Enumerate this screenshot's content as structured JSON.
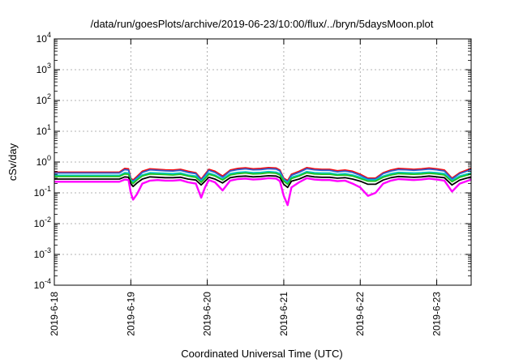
{
  "chart_data": {
    "type": "line",
    "title": "/data/run/goesPlots/archive/2019-06-23/10:00/flux/../bryn/5daysMoon.plot",
    "xlabel": "Coordinated Universal Time (UTC)",
    "ylabel": "cSv/day",
    "yscale": "log",
    "ylim": [
      0.0001,
      10000
    ],
    "xlim": [
      0,
      5.45
    ],
    "grid": true,
    "x_ticks": [
      {
        "label": "2019-6-18",
        "value": 0
      },
      {
        "label": "2019-6-19",
        "value": 1
      },
      {
        "label": "2019-6-20",
        "value": 2
      },
      {
        "label": "2019-6-21",
        "value": 3
      },
      {
        "label": "2019-6-22",
        "value": 4
      },
      {
        "label": "2019-6-23",
        "value": 5
      }
    ],
    "y_ticks": [
      {
        "base": "10",
        "exp": "-4",
        "value": -4
      },
      {
        "base": "10",
        "exp": "-3",
        "value": -3
      },
      {
        "base": "10",
        "exp": "-2",
        "value": -2
      },
      {
        "base": "10",
        "exp": "-1",
        "value": -1
      },
      {
        "base": "10",
        "exp": "0",
        "value": 0
      },
      {
        "base": "10",
        "exp": "1",
        "value": 1
      },
      {
        "base": "10",
        "exp": "2",
        "value": 2
      },
      {
        "base": "10",
        "exp": "3",
        "value": 3
      },
      {
        "base": "10",
        "exp": "4",
        "value": 4
      }
    ],
    "x": [
      0,
      0.3,
      0.6,
      0.85,
      0.92,
      0.97,
      1.0,
      1.03,
      1.08,
      1.15,
      1.25,
      1.35,
      1.45,
      1.55,
      1.65,
      1.75,
      1.85,
      1.92,
      1.97,
      2.02,
      2.1,
      2.2,
      2.3,
      2.4,
      2.5,
      2.6,
      2.7,
      2.8,
      2.9,
      2.95,
      3.0,
      3.05,
      3.1,
      3.2,
      3.3,
      3.4,
      3.5,
      3.6,
      3.7,
      3.8,
      3.9,
      4.0,
      4.1,
      4.2,
      4.3,
      4.4,
      4.5,
      4.6,
      4.7,
      4.8,
      4.9,
      5.0,
      5.1,
      5.2,
      5.3,
      5.45
    ],
    "series": [
      {
        "color": "#ff0000",
        "values": [
          0.47,
          0.47,
          0.47,
          0.47,
          0.62,
          0.6,
          0.3,
          0.26,
          0.34,
          0.5,
          0.6,
          0.58,
          0.56,
          0.55,
          0.58,
          0.5,
          0.45,
          0.28,
          0.4,
          0.58,
          0.5,
          0.35,
          0.55,
          0.62,
          0.65,
          0.6,
          0.62,
          0.66,
          0.64,
          0.55,
          0.3,
          0.25,
          0.4,
          0.5,
          0.66,
          0.6,
          0.58,
          0.58,
          0.52,
          0.55,
          0.5,
          0.4,
          0.3,
          0.3,
          0.45,
          0.55,
          0.62,
          0.6,
          0.58,
          0.6,
          0.64,
          0.6,
          0.55,
          0.3,
          0.45,
          0.62
        ]
      },
      {
        "color": "#2f5fd0",
        "values": [
          0.44,
          0.44,
          0.44,
          0.44,
          0.57,
          0.55,
          0.28,
          0.24,
          0.31,
          0.46,
          0.56,
          0.54,
          0.52,
          0.51,
          0.54,
          0.46,
          0.42,
          0.26,
          0.37,
          0.54,
          0.46,
          0.32,
          0.51,
          0.57,
          0.6,
          0.56,
          0.57,
          0.61,
          0.59,
          0.51,
          0.28,
          0.23,
          0.37,
          0.46,
          0.61,
          0.56,
          0.54,
          0.54,
          0.48,
          0.51,
          0.46,
          0.37,
          0.28,
          0.28,
          0.42,
          0.51,
          0.57,
          0.56,
          0.54,
          0.56,
          0.59,
          0.56,
          0.51,
          0.28,
          0.42,
          0.57
        ]
      },
      {
        "color": "#00c8c8",
        "values": [
          0.37,
          0.37,
          0.37,
          0.37,
          0.45,
          0.44,
          0.26,
          0.22,
          0.28,
          0.38,
          0.45,
          0.44,
          0.43,
          0.42,
          0.44,
          0.38,
          0.35,
          0.24,
          0.32,
          0.44,
          0.38,
          0.28,
          0.42,
          0.46,
          0.48,
          0.45,
          0.46,
          0.49,
          0.47,
          0.42,
          0.26,
          0.21,
          0.32,
          0.38,
          0.49,
          0.45,
          0.44,
          0.44,
          0.4,
          0.42,
          0.38,
          0.32,
          0.26,
          0.26,
          0.35,
          0.42,
          0.46,
          0.45,
          0.44,
          0.45,
          0.47,
          0.45,
          0.42,
          0.25,
          0.35,
          0.45
        ]
      },
      {
        "color": "#20c020",
        "values": [
          0.34,
          0.34,
          0.34,
          0.34,
          0.41,
          0.4,
          0.24,
          0.2,
          0.26,
          0.35,
          0.41,
          0.4,
          0.39,
          0.38,
          0.4,
          0.35,
          0.32,
          0.22,
          0.29,
          0.4,
          0.35,
          0.26,
          0.38,
          0.42,
          0.44,
          0.41,
          0.42,
          0.45,
          0.43,
          0.38,
          0.24,
          0.19,
          0.29,
          0.35,
          0.45,
          0.41,
          0.4,
          0.4,
          0.37,
          0.38,
          0.35,
          0.29,
          0.24,
          0.24,
          0.32,
          0.38,
          0.42,
          0.41,
          0.4,
          0.41,
          0.43,
          0.41,
          0.38,
          0.23,
          0.32,
          0.41
        ]
      },
      {
        "color": "#000000",
        "values": [
          0.28,
          0.28,
          0.28,
          0.28,
          0.33,
          0.32,
          0.2,
          0.16,
          0.21,
          0.28,
          0.33,
          0.32,
          0.31,
          0.31,
          0.32,
          0.28,
          0.26,
          0.18,
          0.24,
          0.32,
          0.28,
          0.21,
          0.31,
          0.34,
          0.35,
          0.33,
          0.34,
          0.36,
          0.35,
          0.31,
          0.19,
          0.15,
          0.24,
          0.28,
          0.36,
          0.33,
          0.32,
          0.32,
          0.3,
          0.31,
          0.28,
          0.24,
          0.19,
          0.19,
          0.26,
          0.31,
          0.34,
          0.33,
          0.32,
          0.33,
          0.35,
          0.33,
          0.31,
          0.18,
          0.26,
          0.33
        ]
      },
      {
        "color": "#ff00ff",
        "values": [
          0.23,
          0.23,
          0.23,
          0.23,
          0.27,
          0.26,
          0.1,
          0.06,
          0.09,
          0.2,
          0.25,
          0.26,
          0.25,
          0.25,
          0.26,
          0.22,
          0.2,
          0.07,
          0.15,
          0.26,
          0.22,
          0.12,
          0.25,
          0.28,
          0.29,
          0.27,
          0.28,
          0.3,
          0.29,
          0.24,
          0.08,
          0.04,
          0.15,
          0.22,
          0.3,
          0.27,
          0.26,
          0.26,
          0.24,
          0.25,
          0.2,
          0.15,
          0.08,
          0.1,
          0.2,
          0.25,
          0.28,
          0.27,
          0.26,
          0.27,
          0.29,
          0.27,
          0.25,
          0.11,
          0.2,
          0.27
        ]
      }
    ]
  }
}
